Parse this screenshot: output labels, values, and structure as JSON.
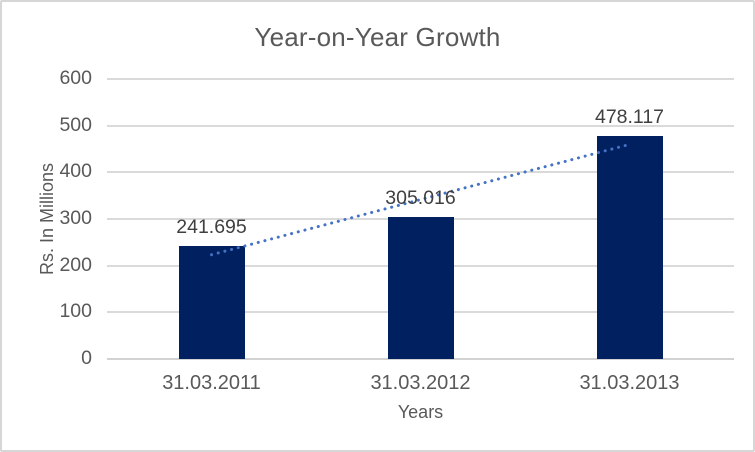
{
  "chart_data": {
    "type": "bar",
    "title": "Year-on-Year Growth",
    "categories": [
      "31.03.2011",
      "31.03.2012",
      "31.03.2013"
    ],
    "values": [
      241.695,
      305.016,
      478.117
    ],
    "data_labels": [
      "241.695",
      "305.016",
      "478.117"
    ],
    "xlabel": "Years",
    "ylabel": "Rs. In Millions",
    "ylim": [
      0,
      600
    ],
    "yticks": [
      0,
      100,
      200,
      300,
      400,
      500,
      600
    ],
    "grid": true,
    "legend": "none",
    "trendline": {
      "type": "linear",
      "style": "dotted"
    }
  },
  "colors": {
    "bar": "#002060",
    "trendline": "#4472c4",
    "gridline": "#dadada",
    "axis_line": "#d2d2d2",
    "title_text": "#595959",
    "axis_text": "#595959",
    "data_label_text": "#404040",
    "frame_border": "#d6d6d6",
    "background": "#ffffff"
  }
}
